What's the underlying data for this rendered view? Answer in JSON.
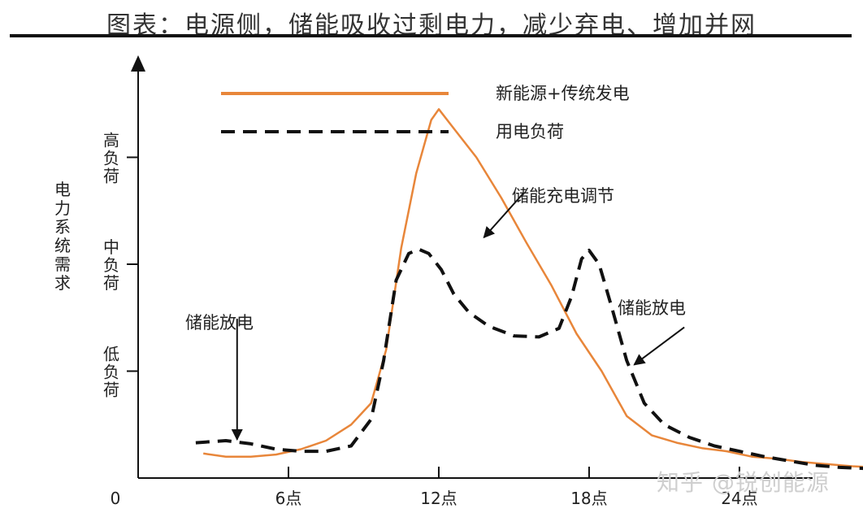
{
  "page_title": "图表：电源侧，储能吸收过剩电力，减少弃电、增加并网",
  "watermark": "知乎 @锐创能源",
  "chart_data": {
    "type": "line",
    "title": "图表：电源侧，储能吸收过剩电力，减少弃电、增加并网",
    "ylabel": "电力系统需求",
    "y_ticks": [
      {
        "label": "低负荷",
        "value": 1
      },
      {
        "label": "中负荷",
        "value": 2
      },
      {
        "label": "高负荷",
        "value": 3
      }
    ],
    "x_ticks": [
      {
        "label": "0",
        "value": 0
      },
      {
        "label": "6点",
        "value": 6
      },
      {
        "label": "12点",
        "value": 12
      },
      {
        "label": "18点",
        "value": 18
      },
      {
        "label": "24点",
        "value": 24
      }
    ],
    "xlim": [
      0,
      30
    ],
    "ylim": [
      0,
      3.9
    ],
    "series": [
      {
        "name": "新能源+传统发电",
        "color": "#e8863a",
        "style": "solid",
        "x": [
          2.6,
          3.5,
          4.5,
          5.5,
          6.5,
          7.5,
          8.5,
          9.3,
          9.9,
          10.5,
          11.1,
          11.7,
          12.0,
          12.5,
          13.5,
          14.5,
          15.5,
          16.5,
          17.5,
          18.5,
          19.5,
          20.5,
          21.5,
          22.5,
          23.5,
          24.5,
          25.5,
          26.5,
          27.5,
          28.5,
          29.5
        ],
        "y": [
          0.23,
          0.2,
          0.2,
          0.22,
          0.27,
          0.35,
          0.5,
          0.7,
          1.2,
          2.15,
          2.85,
          3.35,
          3.45,
          3.3,
          3.0,
          2.62,
          2.2,
          1.8,
          1.35,
          1.0,
          0.58,
          0.4,
          0.33,
          0.28,
          0.25,
          0.2,
          0.18,
          0.15,
          0.13,
          0.11,
          0.1
        ]
      },
      {
        "name": "用电负荷",
        "color": "#111111",
        "style": "dashed",
        "x": [
          2.3,
          3.5,
          4.5,
          5.5,
          6.5,
          7.5,
          8.5,
          9.3,
          9.8,
          10.3,
          10.8,
          11.2,
          11.6,
          12.1,
          12.6,
          13.2,
          14.0,
          15.0,
          16.0,
          16.8,
          17.3,
          17.7,
          18.0,
          18.4,
          18.9,
          19.5,
          20.2,
          21.0,
          22.0,
          23.0,
          24.0,
          25.0,
          26.0,
          27.0,
          28.0,
          29.0,
          30.0
        ],
        "y": [
          0.33,
          0.35,
          0.32,
          0.27,
          0.25,
          0.25,
          0.3,
          0.55,
          1.1,
          1.85,
          2.1,
          2.14,
          2.1,
          1.95,
          1.72,
          1.55,
          1.42,
          1.33,
          1.32,
          1.4,
          1.7,
          2.05,
          2.13,
          2.0,
          1.6,
          1.1,
          0.7,
          0.5,
          0.38,
          0.3,
          0.25,
          0.2,
          0.16,
          0.12,
          0.1,
          0.09,
          0.08
        ]
      }
    ],
    "annotations": [
      {
        "text": "储能放电",
        "from": [
          3.95,
          1.49
        ],
        "to": [
          3.95,
          0.36
        ]
      },
      {
        "text": "储能充电调节",
        "from": [
          15.4,
          2.67
        ],
        "to": [
          13.8,
          2.25
        ]
      },
      {
        "text": "储能放电",
        "from": [
          21.8,
          1.41
        ],
        "to": [
          19.8,
          1.06
        ]
      }
    ]
  }
}
